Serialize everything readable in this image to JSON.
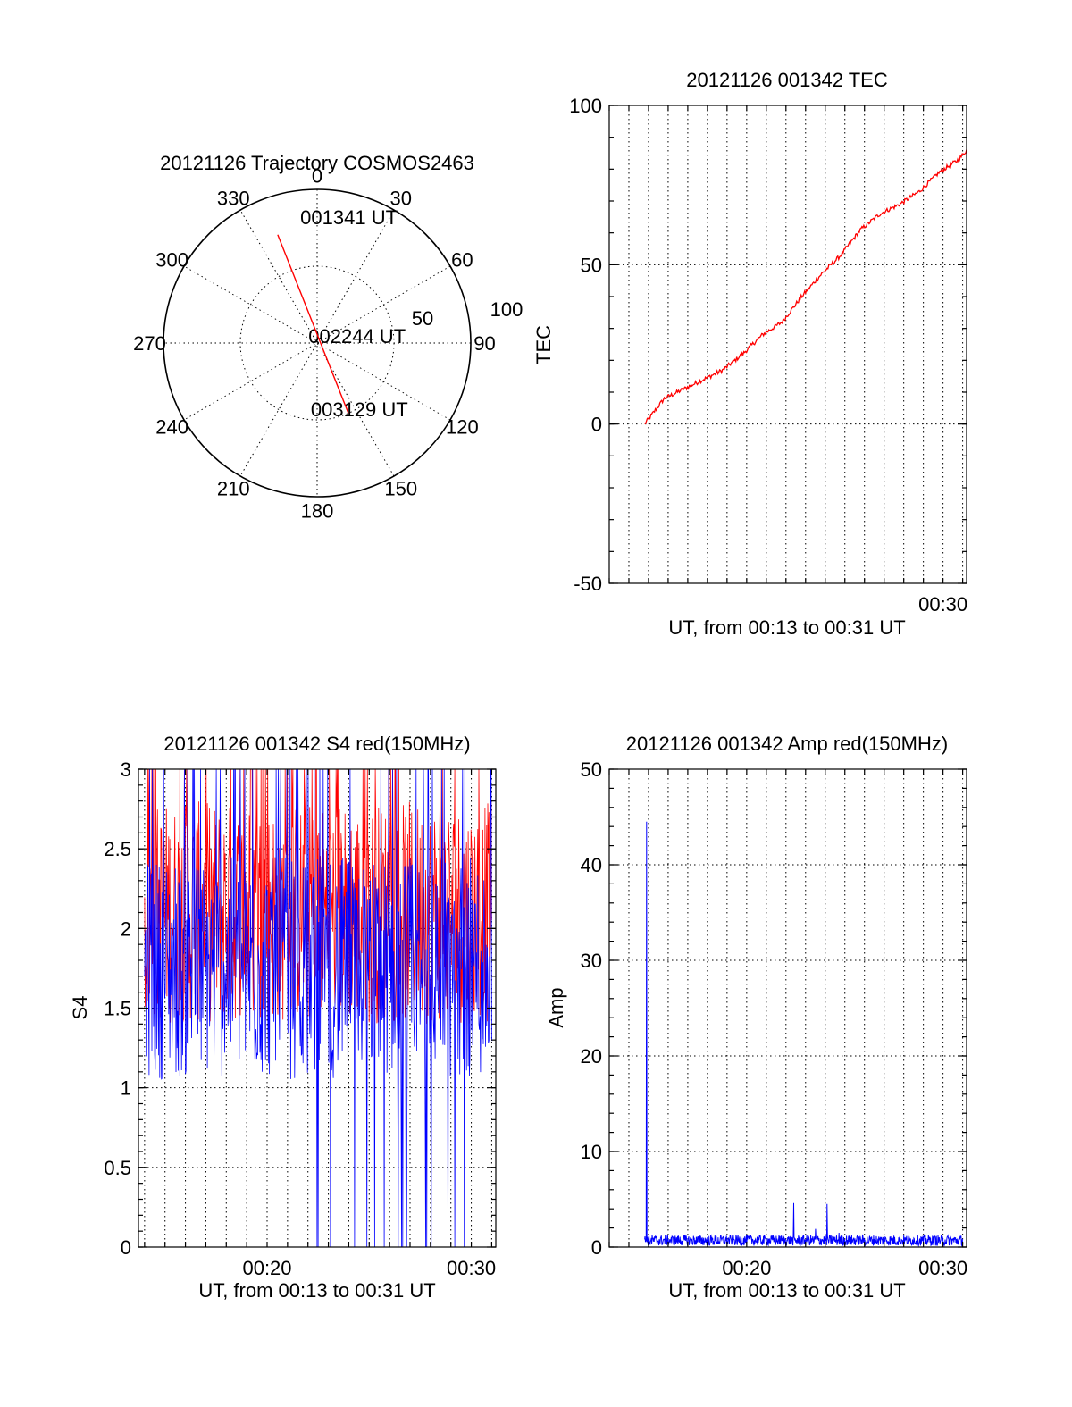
{
  "chart_data": [
    {
      "id": "trajectory",
      "type": "polar",
      "title": "20121126 Trajectory COSMOS2463",
      "azimuth_labels": [
        "0",
        "30",
        "60",
        "90",
        "120",
        "150",
        "180",
        "210",
        "240",
        "270",
        "300",
        "330"
      ],
      "radial_labels": [
        "50",
        "100"
      ],
      "radial_range": [
        0,
        100
      ],
      "series": [
        {
          "color": "#ff0000",
          "points": [
            {
              "azimuth": 340,
              "radius": 75
            },
            {
              "azimuth": 156,
              "radius": 50
            }
          ]
        }
      ],
      "annotations": [
        {
          "label": "001341 UT",
          "azimuth": 15,
          "radius": 80
        },
        {
          "label": "002244 UT",
          "azimuth": 90,
          "radius": 26
        },
        {
          "label": "003129 UT",
          "azimuth": 150,
          "radius": 55
        }
      ]
    },
    {
      "id": "tec",
      "type": "line",
      "title": "20121126 001342 TEC",
      "xlabel": "UT, from 00:13 to 00:31 UT",
      "ylabel": "TEC",
      "xlim": [
        13.0,
        31.2
      ],
      "ylim": [
        -50,
        100
      ],
      "x_tick_labels": [
        {
          "x": 30,
          "label": "00:30"
        }
      ],
      "y_ticks": [
        -50,
        0,
        50,
        100
      ],
      "series": [
        {
          "color": "#ff0000",
          "x": [
            14.8,
            15.8,
            16.8,
            17.8,
            18.8,
            19.8,
            20.8,
            21.8,
            22.8,
            23.8,
            24.8,
            25.8,
            26.8,
            27.8,
            28.8,
            29.8,
            30.8,
            31.2
          ],
          "y": [
            0,
            8,
            11,
            14,
            17,
            22,
            28,
            32,
            40,
            47,
            53,
            61,
            66,
            69,
            73,
            79,
            83,
            86
          ]
        }
      ]
    },
    {
      "id": "s4",
      "type": "line",
      "title": "20121126 001342 S4 red(150MHz)",
      "xlabel": "UT, from 00:13 to 00:31 UT",
      "ylabel": "S4",
      "xlim": [
        13.7,
        31.2
      ],
      "ylim": [
        0,
        3
      ],
      "x_tick_labels": [
        {
          "x": 20,
          "label": "00:20"
        },
        {
          "x": 30,
          "label": "00:30"
        }
      ],
      "y_ticks": [
        "0",
        "0.5",
        "1",
        "1.5",
        "2",
        "2.5",
        "3"
      ],
      "series": [
        {
          "color": "#ff0000",
          "x": [
            14.0,
            31.0
          ],
          "y_mean": 2.1
        },
        {
          "color": "#0000ff",
          "x": [
            14.0,
            31.0
          ],
          "y_mean": 1.75
        }
      ]
    },
    {
      "id": "amp",
      "type": "line",
      "title": "20121126 001342 Amp red(150MHz)",
      "xlabel": "UT, from 00:13 to 00:31 UT",
      "ylabel": "Amp",
      "xlim": [
        13.0,
        31.2
      ],
      "ylim": [
        0,
        50
      ],
      "x_tick_labels": [
        {
          "x": 20,
          "label": "00:20"
        },
        {
          "x": 30,
          "label": "00:30"
        }
      ],
      "y_ticks": [
        0,
        10,
        20,
        30,
        40,
        50
      ],
      "series": [
        {
          "color": "#0000ff",
          "baseline": 0.7,
          "spikes": [
            {
              "x": 14.9,
              "y": 44.5
            },
            {
              "x": 22.4,
              "y": 4.6
            },
            {
              "x": 23.5,
              "y": 1.9
            },
            {
              "x": 24.1,
              "y": 4.5
            },
            {
              "x": 24.7,
              "y": 1.5
            }
          ]
        }
      ]
    }
  ]
}
